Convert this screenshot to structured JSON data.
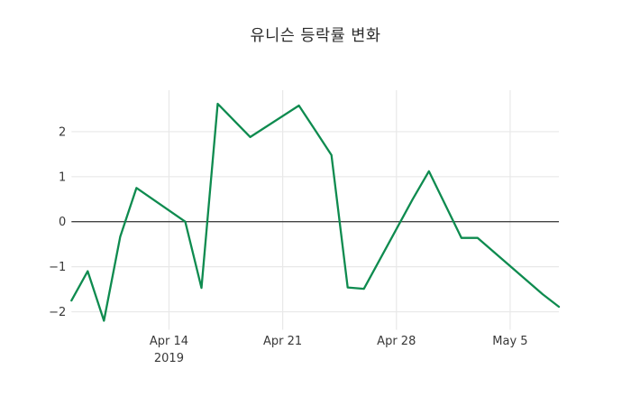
{
  "chart_data": {
    "type": "line",
    "title": "유니슨 등락률 변화",
    "xlabel": "",
    "ylabel": "",
    "x": [
      "2019-04-08",
      "2019-04-09",
      "2019-04-10",
      "2019-04-11",
      "2019-04-12",
      "2019-04-15",
      "2019-04-16",
      "2019-04-17",
      "2019-04-18",
      "2019-04-19",
      "2019-04-22",
      "2019-04-23",
      "2019-04-24",
      "2019-04-25",
      "2019-04-26",
      "2019-04-29",
      "2019-04-30",
      "2019-05-02",
      "2019-05-03",
      "2019-05-07",
      "2019-05-08"
    ],
    "values": [
      -1.75,
      -1.1,
      -2.2,
      -0.33,
      0.75,
      0.0,
      -1.47,
      2.62,
      2.25,
      1.88,
      2.58,
      2.03,
      1.48,
      -1.46,
      -1.49,
      0.5,
      1.12,
      -0.36,
      -0.36,
      -1.61,
      -1.89
    ],
    "ylim": [
      -2.4,
      2.92
    ],
    "xlim": [
      "2019-04-08",
      "2019-05-08"
    ],
    "y_ticks": [
      {
        "value": 2,
        "label": "2"
      },
      {
        "value": 1,
        "label": "1"
      },
      {
        "value": 0,
        "label": "0"
      },
      {
        "value": -1,
        "label": "−1"
      },
      {
        "value": -2,
        "label": "−2"
      }
    ],
    "x_ticks": [
      {
        "date": "2019-04-14",
        "label": "Apr 14",
        "sublabel": "2019"
      },
      {
        "date": "2019-04-21",
        "label": "Apr 21",
        "sublabel": ""
      },
      {
        "date": "2019-04-28",
        "label": "Apr 28",
        "sublabel": ""
      },
      {
        "date": "2019-05-05",
        "label": "May 5",
        "sublabel": ""
      }
    ],
    "grid": true,
    "legend": false,
    "zeroline": true,
    "colors": {
      "line": "#0e8b4f",
      "grid": "#e8e8e8",
      "zeroline": "#444444",
      "tick_text": "#383838",
      "title_text": "#2b2b2b",
      "background": "#ffffff"
    }
  }
}
